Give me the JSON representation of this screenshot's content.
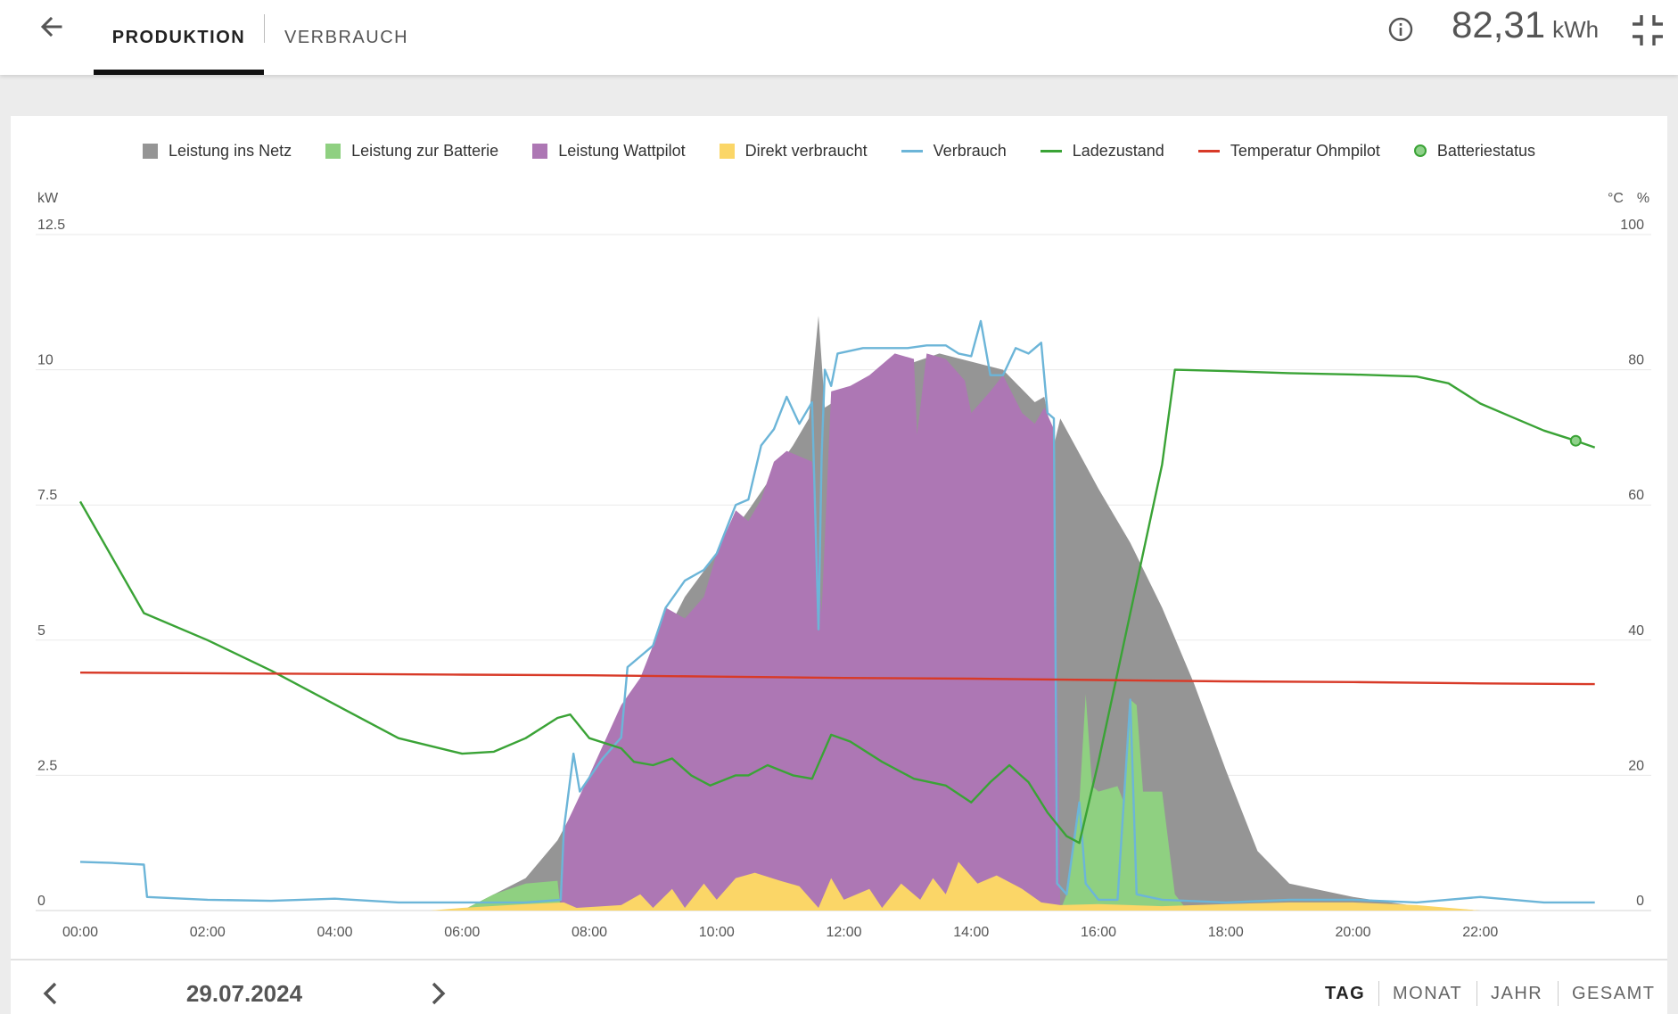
{
  "header": {
    "tabs": [
      {
        "label": "PRODUKTION",
        "active": true
      },
      {
        "label": "VERBRAUCH",
        "active": false
      }
    ],
    "total_value": "82,31",
    "total_unit": "kWh",
    "icons": {
      "back": "arrow-left-icon",
      "info": "info-icon",
      "collapse": "collapse-icon"
    }
  },
  "legend": {
    "items": [
      {
        "label": "Leistung ins Netz",
        "kind": "box",
        "color": "#959595"
      },
      {
        "label": "Leistung zur Batterie",
        "kind": "box",
        "color": "#8fd081"
      },
      {
        "label": "Leistung Wattpilot",
        "kind": "box",
        "color": "#ad77b4"
      },
      {
        "label": "Direkt verbraucht",
        "kind": "box",
        "color": "#fbd667"
      },
      {
        "label": "Verbrauch",
        "kind": "line",
        "color": "#6cb5d8"
      },
      {
        "label": "Ladezustand",
        "kind": "line",
        "color": "#3aa336"
      },
      {
        "label": "Temperatur Ohmpilot",
        "kind": "line",
        "color": "#d83a28"
      },
      {
        "label": "Batteriestatus",
        "kind": "dot",
        "color": "#3aa336"
      }
    ]
  },
  "footer": {
    "date": "29.07.2024",
    "periods": [
      "TAG",
      "MONAT",
      "JAHR",
      "GESAMT"
    ],
    "active_period": "TAG"
  },
  "chart_data": {
    "type": "area",
    "left_axis": {
      "unit_label": "kW",
      "ticks": [
        "0",
        "2.5",
        "5",
        "7.5",
        "10",
        "12.5"
      ],
      "range": [
        0,
        12.5
      ]
    },
    "right_axis": {
      "unit_labels": [
        "°C",
        "%"
      ],
      "ticks": [
        "0",
        "20",
        "40",
        "60",
        "80",
        "100"
      ],
      "range": [
        0,
        100
      ]
    },
    "x_axis": {
      "ticks": [
        "00:00",
        "02:00",
        "04:00",
        "06:00",
        "08:00",
        "10:00",
        "12:00",
        "14:00",
        "16:00",
        "18:00",
        "20:00",
        "22:00"
      ],
      "range_hours": [
        0,
        24
      ]
    },
    "grid": true,
    "legend_position": "top-center",
    "stacked_areas": [
      {
        "name": "Direkt verbraucht",
        "color": "#fbd667",
        "points": [
          [
            0,
            0
          ],
          [
            5.5,
            0
          ],
          [
            6.0,
            0.05
          ],
          [
            7.0,
            0.12
          ],
          [
            7.6,
            0.15
          ],
          [
            7.8,
            0.05
          ],
          [
            8.5,
            0.1
          ],
          [
            8.8,
            0.3
          ],
          [
            9.0,
            0.05
          ],
          [
            9.3,
            0.4
          ],
          [
            9.5,
            0.05
          ],
          [
            9.8,
            0.5
          ],
          [
            10.0,
            0.2
          ],
          [
            10.3,
            0.6
          ],
          [
            10.6,
            0.7
          ],
          [
            11.0,
            0.55
          ],
          [
            11.3,
            0.45
          ],
          [
            11.6,
            0.05
          ],
          [
            11.8,
            0.6
          ],
          [
            12.0,
            0.2
          ],
          [
            12.4,
            0.4
          ],
          [
            12.6,
            0.05
          ],
          [
            12.9,
            0.5
          ],
          [
            13.2,
            0.2
          ],
          [
            13.4,
            0.6
          ],
          [
            13.6,
            0.3
          ],
          [
            13.8,
            0.9
          ],
          [
            14.1,
            0.5
          ],
          [
            14.4,
            0.65
          ],
          [
            14.8,
            0.4
          ],
          [
            15.1,
            0.15
          ],
          [
            15.4,
            0.1
          ],
          [
            16.0,
            0.12
          ],
          [
            17.0,
            0.08
          ],
          [
            18.0,
            0.12
          ],
          [
            19.0,
            0.15
          ],
          [
            20.0,
            0.15
          ],
          [
            21.0,
            0.1
          ],
          [
            22.0,
            0
          ],
          [
            24,
            0
          ]
        ]
      },
      {
        "name": "Leistung Wattpilot",
        "color": "#ad77b4",
        "points": [
          [
            0,
            0
          ],
          [
            7.55,
            0
          ],
          [
            7.6,
            1.5
          ],
          [
            8.0,
            2.5
          ],
          [
            8.5,
            3.8
          ],
          [
            8.8,
            4.3
          ],
          [
            9.0,
            4.9
          ],
          [
            9.2,
            5.6
          ],
          [
            9.5,
            5.4
          ],
          [
            9.8,
            5.8
          ],
          [
            10.0,
            6.6
          ],
          [
            10.3,
            7.4
          ],
          [
            10.5,
            7.2
          ],
          [
            10.7,
            7.6
          ],
          [
            10.9,
            8.3
          ],
          [
            11.1,
            8.5
          ],
          [
            11.3,
            8.4
          ],
          [
            11.5,
            8.3
          ],
          [
            11.65,
            5.5
          ],
          [
            11.8,
            9.6
          ],
          [
            12.1,
            9.7
          ],
          [
            12.4,
            9.9
          ],
          [
            12.8,
            10.3
          ],
          [
            13.1,
            10.2
          ],
          [
            13.15,
            8.8
          ],
          [
            13.3,
            10.3
          ],
          [
            13.6,
            10.2
          ],
          [
            13.9,
            9.8
          ],
          [
            14.0,
            9.2
          ],
          [
            14.3,
            9.6
          ],
          [
            14.5,
            9.9
          ],
          [
            14.8,
            9.2
          ],
          [
            15.0,
            9.0
          ],
          [
            15.15,
            9.3
          ],
          [
            15.3,
            8.9
          ],
          [
            15.4,
            0
          ],
          [
            24,
            0
          ]
        ]
      },
      {
        "name": "Leistung zur Batterie",
        "color": "#8fd081",
        "points": [
          [
            0,
            0
          ],
          [
            6.0,
            0
          ],
          [
            6.5,
            0.3
          ],
          [
            7.0,
            0.5
          ],
          [
            7.5,
            0.55
          ],
          [
            7.55,
            0
          ],
          [
            15.4,
            0
          ],
          [
            15.5,
            0.3
          ],
          [
            15.7,
            2.0
          ],
          [
            15.8,
            4.0
          ],
          [
            15.9,
            2.3
          ],
          [
            16.0,
            2.2
          ],
          [
            16.3,
            2.3
          ],
          [
            16.4,
            2.0
          ],
          [
            16.5,
            3.9
          ],
          [
            16.6,
            3.8
          ],
          [
            16.7,
            2.2
          ],
          [
            17.0,
            2.2
          ],
          [
            17.2,
            0.3
          ],
          [
            17.4,
            0
          ],
          [
            24,
            0
          ]
        ]
      },
      {
        "name": "Leistung ins Netz",
        "color": "#959595",
        "points": [
          [
            0,
            0
          ],
          [
            6.0,
            0
          ],
          [
            7.0,
            0.6
          ],
          [
            7.5,
            1.3
          ],
          [
            8.5,
            3.5
          ],
          [
            9.5,
            5.8
          ],
          [
            10.5,
            7.4
          ],
          [
            11.2,
            8.6
          ],
          [
            11.45,
            9.1
          ],
          [
            11.6,
            11.0
          ],
          [
            11.7,
            9.3
          ],
          [
            12.5,
            9.9
          ],
          [
            13.5,
            10.3
          ],
          [
            14.5,
            10.0
          ],
          [
            15.0,
            9.4
          ],
          [
            15.15,
            9.5
          ],
          [
            15.3,
            8.6
          ],
          [
            15.4,
            9.1
          ],
          [
            16.0,
            7.8
          ],
          [
            16.5,
            6.8
          ],
          [
            17.0,
            5.6
          ],
          [
            17.5,
            4.2
          ],
          [
            18.0,
            2.6
          ],
          [
            18.5,
            1.1
          ],
          [
            19.0,
            0.5
          ],
          [
            20.0,
            0.25
          ],
          [
            21.0,
            0.08
          ],
          [
            22.0,
            0
          ],
          [
            24,
            0
          ]
        ]
      }
    ],
    "lines": [
      {
        "name": "Verbrauch",
        "axis": "left",
        "color": "#6cb5d8",
        "points": [
          [
            0,
            0.9
          ],
          [
            0.5,
            0.88
          ],
          [
            1.0,
            0.85
          ],
          [
            1.05,
            0.25
          ],
          [
            2.0,
            0.2
          ],
          [
            3.0,
            0.18
          ],
          [
            4.0,
            0.22
          ],
          [
            5.0,
            0.15
          ],
          [
            6.0,
            0.15
          ],
          [
            7.0,
            0.15
          ],
          [
            7.55,
            0.2
          ],
          [
            7.6,
            1.5
          ],
          [
            7.75,
            2.9
          ],
          [
            7.85,
            2.2
          ],
          [
            8.2,
            2.8
          ],
          [
            8.5,
            3.2
          ],
          [
            8.6,
            4.5
          ],
          [
            8.8,
            4.7
          ],
          [
            9.0,
            4.9
          ],
          [
            9.2,
            5.6
          ],
          [
            9.5,
            6.1
          ],
          [
            9.8,
            6.3
          ],
          [
            10.0,
            6.6
          ],
          [
            10.3,
            7.5
          ],
          [
            10.5,
            7.6
          ],
          [
            10.7,
            8.6
          ],
          [
            10.9,
            8.9
          ],
          [
            11.1,
            9.5
          ],
          [
            11.3,
            9.0
          ],
          [
            11.5,
            9.4
          ],
          [
            11.6,
            5.2
          ],
          [
            11.65,
            8.4
          ],
          [
            11.7,
            10.0
          ],
          [
            11.8,
            9.7
          ],
          [
            11.9,
            10.3
          ],
          [
            12.3,
            10.4
          ],
          [
            13.0,
            10.4
          ],
          [
            13.3,
            10.45
          ],
          [
            13.6,
            10.45
          ],
          [
            13.8,
            10.3
          ],
          [
            14.0,
            10.25
          ],
          [
            14.15,
            10.9
          ],
          [
            14.3,
            9.9
          ],
          [
            14.5,
            9.9
          ],
          [
            14.7,
            10.4
          ],
          [
            14.9,
            10.3
          ],
          [
            15.1,
            10.5
          ],
          [
            15.2,
            9.2
          ],
          [
            15.3,
            9.1
          ],
          [
            15.35,
            0.5
          ],
          [
            15.5,
            0.3
          ],
          [
            15.7,
            2.0
          ],
          [
            15.8,
            0.5
          ],
          [
            16.0,
            0.2
          ],
          [
            16.3,
            0.2
          ],
          [
            16.5,
            3.9
          ],
          [
            16.6,
            0.3
          ],
          [
            17.0,
            0.2
          ],
          [
            18.0,
            0.15
          ],
          [
            19.0,
            0.2
          ],
          [
            20.0,
            0.2
          ],
          [
            21.0,
            0.15
          ],
          [
            22.0,
            0.25
          ],
          [
            23.0,
            0.15
          ],
          [
            23.8,
            0.15
          ]
        ]
      },
      {
        "name": "Ladezustand",
        "axis": "right",
        "color": "#3aa336",
        "points": [
          [
            0,
            60.5
          ],
          [
            1.0,
            44.0
          ],
          [
            2.0,
            40.0
          ],
          [
            3.0,
            35.5
          ],
          [
            4.0,
            30.5
          ],
          [
            5.0,
            25.5
          ],
          [
            6.0,
            23.2
          ],
          [
            6.5,
            23.5
          ],
          [
            7.0,
            25.5
          ],
          [
            7.5,
            28.5
          ],
          [
            7.7,
            29.0
          ],
          [
            8.0,
            25.5
          ],
          [
            8.5,
            24.0
          ],
          [
            8.7,
            22.0
          ],
          [
            9.0,
            21.5
          ],
          [
            9.3,
            22.5
          ],
          [
            9.6,
            20.0
          ],
          [
            9.9,
            18.5
          ],
          [
            10.3,
            20.0
          ],
          [
            10.5,
            20.0
          ],
          [
            10.8,
            21.5
          ],
          [
            11.2,
            20.0
          ],
          [
            11.5,
            19.5
          ],
          [
            11.8,
            26.0
          ],
          [
            12.1,
            25.0
          ],
          [
            12.6,
            22.0
          ],
          [
            13.1,
            19.5
          ],
          [
            13.6,
            18.5
          ],
          [
            14.0,
            16.0
          ],
          [
            14.3,
            19.0
          ],
          [
            14.6,
            21.5
          ],
          [
            14.9,
            19.0
          ],
          [
            15.2,
            14.5
          ],
          [
            15.5,
            11.0
          ],
          [
            15.7,
            10.0
          ],
          [
            16.0,
            22.0
          ],
          [
            16.5,
            44.0
          ],
          [
            17.0,
            66.0
          ],
          [
            17.2,
            80.0
          ],
          [
            18.0,
            79.8
          ],
          [
            19.0,
            79.5
          ],
          [
            20.0,
            79.3
          ],
          [
            21.0,
            79.0
          ],
          [
            21.5,
            78.0
          ],
          [
            22.0,
            75.0
          ],
          [
            22.5,
            73.0
          ],
          [
            23.0,
            71.0
          ],
          [
            23.5,
            69.5
          ],
          [
            23.8,
            68.5
          ]
        ]
      },
      {
        "name": "Temperatur Ohmpilot",
        "axis": "right",
        "color": "#d83a28",
        "points": [
          [
            0,
            35.2
          ],
          [
            2,
            35.1
          ],
          [
            4,
            35.0
          ],
          [
            6,
            34.9
          ],
          [
            8,
            34.8
          ],
          [
            10,
            34.6
          ],
          [
            12,
            34.4
          ],
          [
            14,
            34.3
          ],
          [
            16,
            34.1
          ],
          [
            18,
            33.9
          ],
          [
            20,
            33.8
          ],
          [
            22,
            33.6
          ],
          [
            23.8,
            33.5
          ]
        ]
      }
    ],
    "markers": [
      {
        "name": "Batteriestatus",
        "axis": "right",
        "color": "#3aa336",
        "x": 23.5,
        "y": 69.5
      }
    ]
  }
}
